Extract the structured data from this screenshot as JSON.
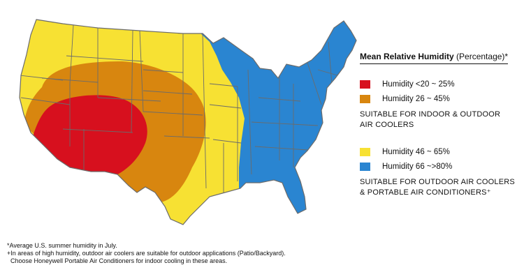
{
  "legend": {
    "title_bold": "Mean Relative Humidity",
    "title_rest": " (Percentage)*",
    "items": [
      {
        "label": "Humidity <20 ~ 25%",
        "color": "#d7101e"
      },
      {
        "label": "Humidity  26 ~ 45%",
        "color": "#d8860f"
      },
      {
        "label": "Humidity  46 ~ 65%",
        "color": "#f7e133"
      },
      {
        "label": "Humidity  66 ~>80%",
        "color": "#2a85d1"
      }
    ],
    "suitability": [
      {
        "line1": "SUITABLE FOR INDOOR & OUTDOOR",
        "line2": "AIR COOLERS"
      },
      {
        "line1": "SUITABLE FOR OUTDOOR AIR COOLERS",
        "line2": "& PORTABLE AIR CONDITIONERS⁺"
      }
    ]
  },
  "footnotes": [
    "*Average U.S. summer humidity in July.",
    "+In areas of high humidity, outdoor air coolers are suitable for outdoor applications (Patio/Backyard).",
    "  Choose Honeywell Portable Air Conditioners for indoor cooling in these areas."
  ],
  "map": {
    "outline_color": "#6b6b6b"
  }
}
